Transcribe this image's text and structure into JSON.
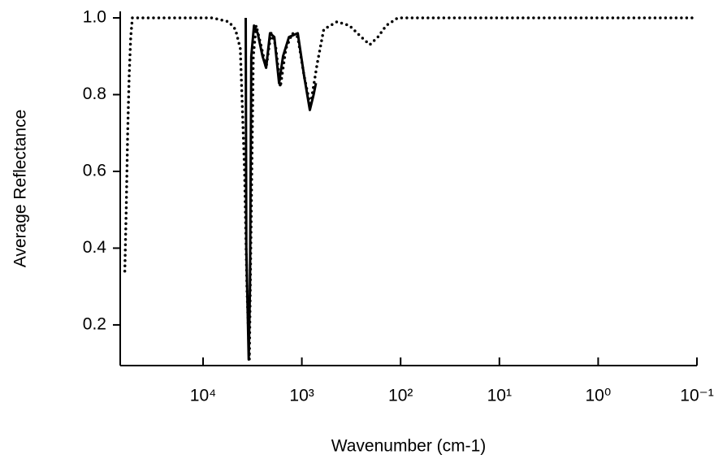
{
  "chart_data": {
    "type": "line",
    "x_label": "Wavenumber (cm-1)",
    "y_label": "Average Reflectance",
    "x_scale": "log",
    "xlim": [
      69000,
      0.1
    ],
    "ylim": [
      0.094,
      1
    ],
    "xticks": [
      {
        "value": 10000,
        "label": "10⁴"
      },
      {
        "value": 1000,
        "label": "10³"
      },
      {
        "value": 100,
        "label": "10²"
      },
      {
        "value": 10,
        "label": "10¹"
      },
      {
        "value": 1,
        "label": "10⁰"
      },
      {
        "value": 0.1,
        "label": "10⁻¹"
      }
    ],
    "yticks": [
      0.2,
      0.4,
      0.6,
      0.8,
      {
        "value": 1,
        "label": "1.0"
      }
    ],
    "series": [
      {
        "style": "dotted",
        "color": "#000000",
        "x": [
          62000,
          60000,
          58000,
          56000,
          54000,
          52000,
          40000,
          20000,
          8000,
          5500,
          4700,
          4200,
          3800,
          3600,
          3400,
          3250,
          3100,
          2900,
          2600,
          2300,
          2050,
          1850,
          1650,
          1450,
          1250,
          1100,
          950,
          820,
          700,
          600,
          440,
          330,
          250,
          205,
          170,
          140,
          107,
          10,
          1,
          0.1
        ],
        "values": [
          0.34,
          0.5,
          0.7,
          0.85,
          0.95,
          1.0,
          1.0,
          1.0,
          1.0,
          0.99,
          0.97,
          0.92,
          0.6,
          0.3,
          0.11,
          0.5,
          0.9,
          0.98,
          0.93,
          0.87,
          0.96,
          0.93,
          0.82,
          0.92,
          0.96,
          0.95,
          0.85,
          0.77,
          0.88,
          0.97,
          0.99,
          0.98,
          0.95,
          0.93,
          0.95,
          0.98,
          1.0,
          1.0,
          1.0,
          1.0
        ]
      },
      {
        "style": "solid",
        "color": "#000000",
        "x": [
          3700,
          3650,
          3450,
          3350,
          3250,
          3050,
          2800,
          2500,
          2300,
          2100,
          1900,
          1700,
          1550,
          1350,
          1100,
          950,
          830,
          760,
          720
        ],
        "values": [
          1.0,
          0.4,
          0.11,
          0.3,
          0.9,
          0.98,
          0.96,
          0.9,
          0.87,
          0.96,
          0.95,
          0.83,
          0.9,
          0.95,
          0.96,
          0.85,
          0.76,
          0.8,
          0.83
        ]
      }
    ]
  }
}
